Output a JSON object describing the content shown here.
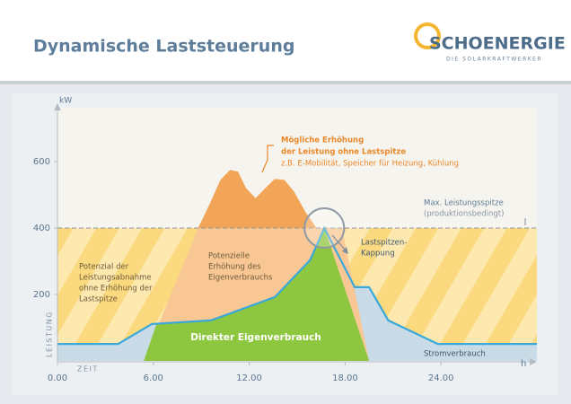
{
  "header": {
    "title": "Dynamische Laststeuerung",
    "logo": "SCHOENERGIE",
    "logo_tagline": "DIE SOLARKRAFTWERKER"
  },
  "chart_data": {
    "type": "area",
    "y_label": "kW",
    "y_axis_title": "LEISTUNG",
    "x_axis_title": "ZEIT",
    "x_unit": "h",
    "xlim": [
      0,
      30
    ],
    "ylim": [
      0,
      750
    ],
    "xticks": [
      {
        "value": 0,
        "label": "0.00"
      },
      {
        "value": 6,
        "label": "6.00"
      },
      {
        "value": 12,
        "label": "12.00"
      },
      {
        "value": 18,
        "label": "18.00"
      },
      {
        "value": 24,
        "label": "24.00"
      }
    ],
    "yticks": [
      200,
      400,
      600
    ],
    "hatch_band": [
      0,
      400
    ],
    "series": [
      {
        "name": "Stromverbrauch",
        "color": "#3aa8d8",
        "fill": "#c8dbe7",
        "x": [
          0,
          3.8,
          5.9,
          9.6,
          13.6,
          15.8,
          16.7,
          18.6,
          19.5,
          20.7,
          23.8,
          30
        ],
        "values": [
          51,
          51,
          111,
          122,
          192,
          303,
          400,
          222,
          222,
          122,
          51,
          51
        ]
      },
      {
        "fill": "#f8c793",
        "x": [
          5.4,
          8.8,
          17.8,
          19.5
        ],
        "values": [
          0,
          400,
          400,
          0
        ]
      },
      {
        "name": "Direkter Eigenverbrauch",
        "fill": "#8dc63f",
        "x": [
          5.4,
          6.2,
          9.6,
          13.6,
          15.8,
          16.7,
          19.5
        ],
        "values": [
          0,
          111,
          122,
          192,
          303,
          400,
          0
        ]
      },
      {
        "fill": "#f2a457",
        "x": [
          8.8,
          9.5,
          10.2,
          10.8,
          11.3,
          11.8,
          12.4,
          13.0,
          13.6,
          14.2,
          14.8,
          15.5,
          16.2
        ],
        "values": [
          400,
          470,
          545,
          575,
          570,
          520,
          490,
          520,
          548,
          545,
          510,
          450,
          400
        ]
      }
    ],
    "max_line": {
      "value": 400,
      "lines": [
        "Max. Leistungsspitze",
        "(produktionsbedingt)"
      ]
    },
    "annotations": [
      {
        "lines": [
          "Mögliche Erhöhung",
          "der Leistung ohne Lastspitze"
        ]
      },
      {
        "lines": [
          "z.B. E-Mobilität, Speicher für Heizung, Kühlung"
        ]
      },
      {
        "lines": [
          "Potenzial der",
          "Leistungsabnahme",
          "ohne Erhöhung der",
          "Lastspitze"
        ]
      },
      {
        "lines": [
          "Potenzielle",
          "Erhöhung des",
          "Eigenverbrauchs"
        ]
      },
      {
        "lines": [
          "Lastspitzen-",
          "Kappung"
        ]
      }
    ]
  }
}
